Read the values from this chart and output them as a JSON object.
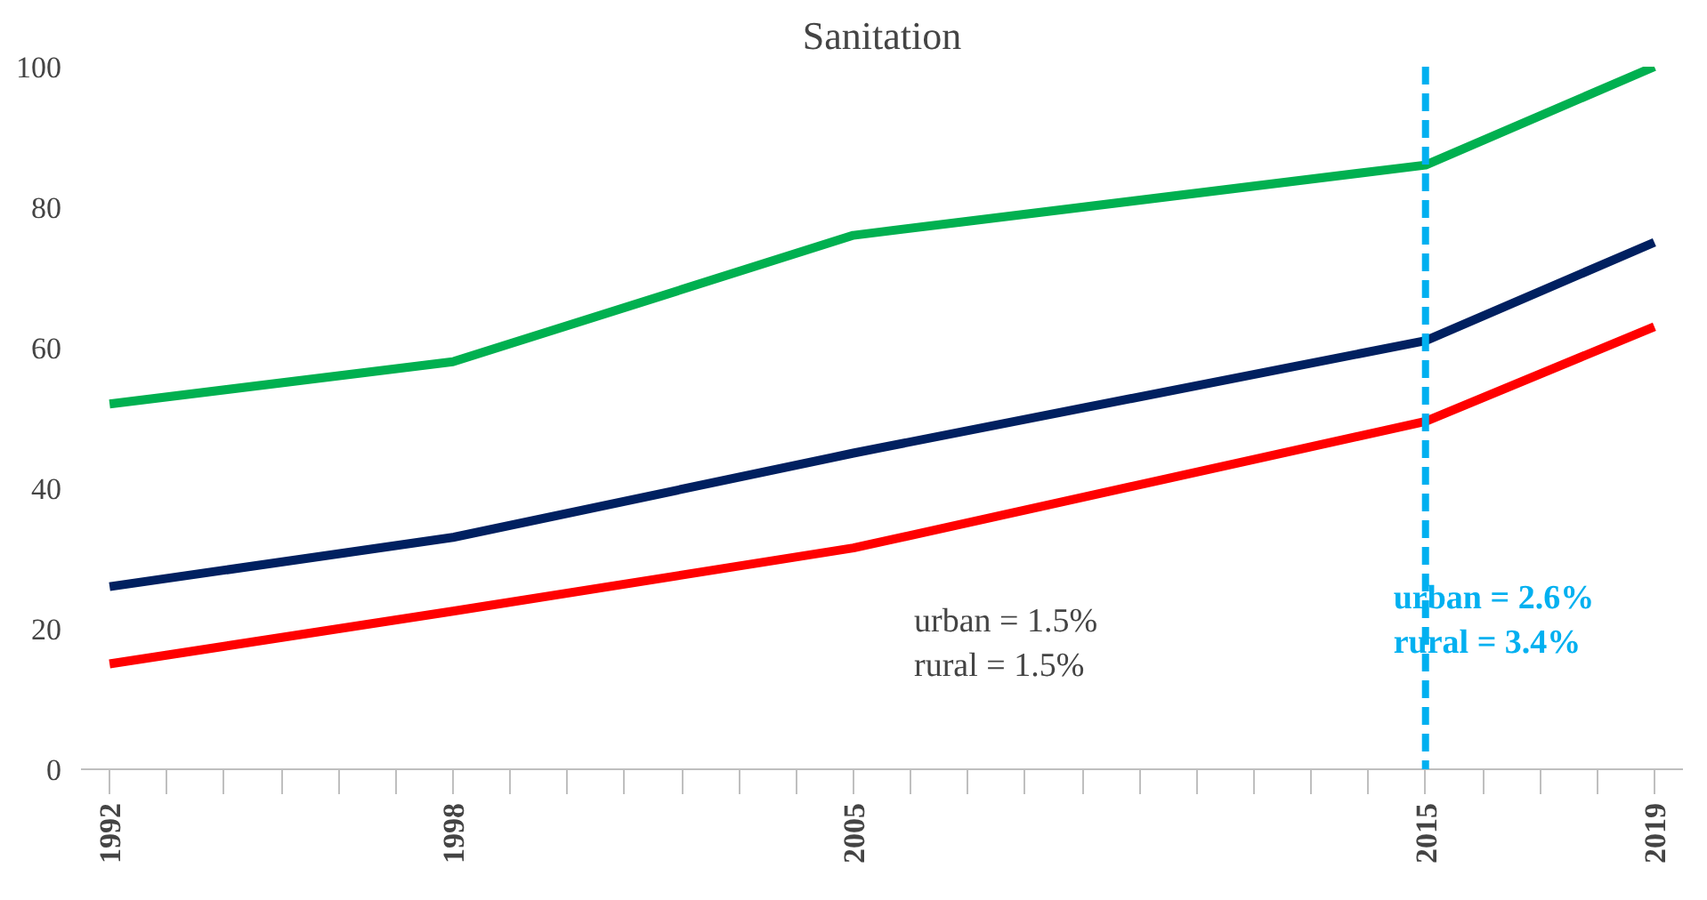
{
  "chart_data": {
    "type": "line",
    "title": "Sanitation",
    "x": [
      1992,
      1998,
      2005,
      2015,
      2019
    ],
    "series": [
      {
        "color": "#00b050",
        "values": [
          52,
          58,
          76,
          86,
          100
        ]
      },
      {
        "color": "#002060",
        "values": [
          26,
          33,
          45,
          61,
          75
        ]
      },
      {
        "color": "#ff0000",
        "values": [
          15,
          22.5,
          31.5,
          49.5,
          63
        ]
      }
    ],
    "xlim": [
      1991.5,
      2019.5
    ],
    "xticks": [
      1992,
      {
        "value": 1993,
        "label": null
      },
      {
        "value": 1994,
        "label": null
      },
      {
        "value": 1995,
        "label": null
      },
      {
        "value": 1996,
        "label": null
      },
      {
        "value": 1997,
        "label": null
      },
      1998,
      {
        "value": 1999,
        "label": null
      },
      {
        "value": 2000,
        "label": null
      },
      {
        "value": 2001,
        "label": null
      },
      {
        "value": 2002,
        "label": null
      },
      {
        "value": 2003,
        "label": null
      },
      {
        "value": 2004,
        "label": null
      },
      2005,
      {
        "value": 2006,
        "label": null
      },
      {
        "value": 2007,
        "label": null
      },
      {
        "value": 2008,
        "label": null
      },
      {
        "value": 2009,
        "label": null
      },
      {
        "value": 2010,
        "label": null
      },
      {
        "value": 2011,
        "label": null
      },
      {
        "value": 2012,
        "label": null
      },
      {
        "value": 2013,
        "label": null
      },
      {
        "value": 2014,
        "label": null
      },
      2015,
      {
        "value": 2016,
        "label": null
      },
      {
        "value": 2017,
        "label": null
      },
      {
        "value": 2018,
        "label": null
      },
      2019
    ],
    "ylim": [
      0,
      100
    ],
    "yticks": [
      0,
      20,
      40,
      60,
      80,
      100
    ],
    "ref_lines": [
      {
        "axis": "x",
        "value": 2015,
        "color": "#00b0f0",
        "line_style": "dashed"
      }
    ],
    "annotations": [
      "urban = 1.5%\nrural = 1.5%",
      {
        "text": "urban = 2.6%\nrural = 3.4%",
        "x": 2015,
        "y": 27
      }
    ],
    "grid": false,
    "marker": "none",
    "line_style": "solid"
  }
}
